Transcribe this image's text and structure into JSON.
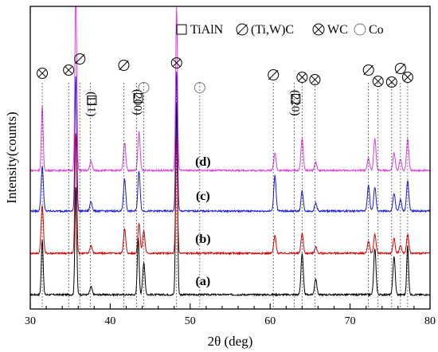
{
  "chart_data": {
    "type": "line",
    "xlabel": "2θ (deg)",
    "ylabel": "Intensity(counts)",
    "xlim": [
      30,
      80
    ],
    "x_ticks": [
      30,
      40,
      50,
      60,
      70,
      80
    ],
    "y_ticks_shown": false,
    "grid": false,
    "legend": {
      "placement": "top",
      "entries": [
        {
          "symbol": "square",
          "label": "TiAlN"
        },
        {
          "symbol": "slashed-circle",
          "label": "(Ti,W)C"
        },
        {
          "symbol": "crossed-circle",
          "label": "WC"
        },
        {
          "symbol": "open-circle",
          "label": "Co"
        }
      ]
    },
    "series": [
      {
        "name": "(a)",
        "color": "#000000",
        "baseline": 0,
        "label_x": 51.6,
        "peaks": [
          [
            31.5,
            70
          ],
          [
            35.7,
            135
          ],
          [
            37.6,
            10
          ],
          [
            43.5,
            72
          ],
          [
            44.2,
            40
          ],
          [
            48.3,
            240
          ],
          [
            64.0,
            52
          ],
          [
            65.7,
            20
          ],
          [
            73.1,
            58
          ],
          [
            75.5,
            48
          ],
          [
            77.2,
            62
          ]
        ]
      },
      {
        "name": "(b)",
        "color": "#dd0000",
        "baseline": 0,
        "label_x": 51.6,
        "peaks": [
          [
            31.5,
            60
          ],
          [
            35.7,
            150
          ],
          [
            37.6,
            10
          ],
          [
            41.8,
            30
          ],
          [
            43.6,
            38
          ],
          [
            44.2,
            28
          ],
          [
            48.3,
            145
          ],
          [
            60.6,
            22
          ],
          [
            64.0,
            25
          ],
          [
            65.7,
            8
          ],
          [
            72.3,
            15
          ],
          [
            73.1,
            24
          ],
          [
            75.5,
            18
          ],
          [
            76.3,
            10
          ],
          [
            77.2,
            24
          ]
        ]
      },
      {
        "name": "(c)",
        "color": "#1a1ad8",
        "baseline": 0,
        "label_x": 51.6,
        "peaks": [
          [
            31.5,
            56
          ],
          [
            35.7,
            170
          ],
          [
            37.6,
            12
          ],
          [
            41.8,
            40
          ],
          [
            43.6,
            50
          ],
          [
            48.3,
            175
          ],
          [
            60.6,
            45
          ],
          [
            64.0,
            25
          ],
          [
            65.7,
            10
          ],
          [
            72.3,
            32
          ],
          [
            73.1,
            30
          ],
          [
            75.5,
            22
          ],
          [
            76.3,
            14
          ],
          [
            77.2,
            38
          ]
        ]
      },
      {
        "name": "(d)",
        "color": "#e23ce2",
        "baseline": 0,
        "label_x": 51.6,
        "peaks": [
          [
            31.5,
            80
          ],
          [
            35.7,
            230
          ],
          [
            37.6,
            12
          ],
          [
            41.8,
            35
          ],
          [
            43.6,
            48
          ],
          [
            48.3,
            205
          ],
          [
            60.6,
            22
          ],
          [
            64.0,
            40
          ],
          [
            65.7,
            10
          ],
          [
            72.3,
            15
          ],
          [
            73.1,
            40
          ],
          [
            75.5,
            22
          ],
          [
            76.3,
            14
          ],
          [
            77.2,
            40
          ]
        ]
      }
    ],
    "peak_markers": [
      {
        "x": 31.5,
        "symbol": "crossed-circle"
      },
      {
        "x": 34.8,
        "symbol": "crossed-circle"
      },
      {
        "x": 36.2,
        "symbol": "slashed-circle"
      },
      {
        "x": 37.5,
        "symbol": "square",
        "label": "(111)"
      },
      {
        "x": 41.7,
        "symbol": "slashed-circle"
      },
      {
        "x": 43.3,
        "symbol": "square",
        "label": "(200)"
      },
      {
        "x": 44.2,
        "symbol": "open-circle"
      },
      {
        "x": 48.3,
        "symbol": "crossed-circle"
      },
      {
        "x": 51.2,
        "symbol": "open-circle"
      },
      {
        "x": 60.4,
        "symbol": "slashed-circle"
      },
      {
        "x": 63.0,
        "symbol": "square",
        "label": "(220)"
      },
      {
        "x": 64.0,
        "symbol": "crossed-circle"
      },
      {
        "x": 65.6,
        "symbol": "crossed-circle"
      },
      {
        "x": 72.3,
        "symbol": "slashed-circle"
      },
      {
        "x": 73.5,
        "symbol": "crossed-circle"
      },
      {
        "x": 75.2,
        "symbol": "crossed-circle"
      },
      {
        "x": 76.3,
        "symbol": "slashed-circle"
      },
      {
        "x": 77.2,
        "symbol": "crossed-circle"
      }
    ]
  }
}
